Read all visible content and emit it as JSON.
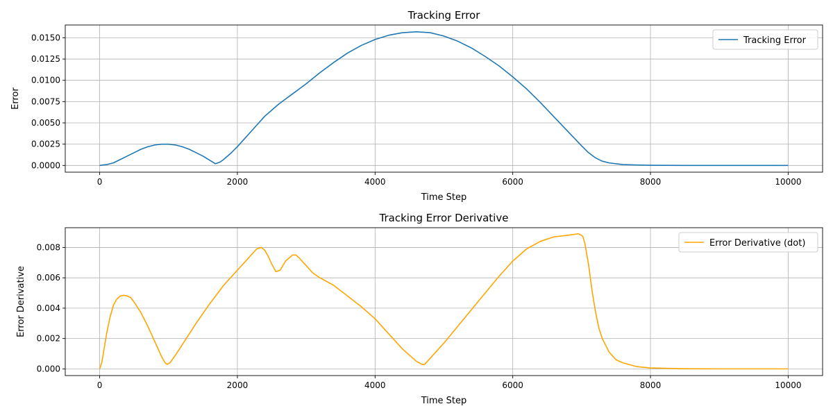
{
  "chart_data": [
    {
      "type": "line",
      "title": "Tracking Error",
      "xlabel": "Time Step",
      "ylabel": "Error",
      "xlim": [
        -500,
        10500
      ],
      "ylim": [
        -0.00079,
        0.0165
      ],
      "x_ticks": [
        0,
        2000,
        4000,
        6000,
        8000,
        10000
      ],
      "x_tick_labels": [
        "0",
        "2000",
        "4000",
        "6000",
        "8000",
        "10000"
      ],
      "y_ticks": [
        0,
        0.0025,
        0.005,
        0.0075,
        0.01,
        0.0125,
        0.015
      ],
      "y_tick_labels": [
        "0.0000",
        "0.0025",
        "0.0050",
        "0.0075",
        "0.0100",
        "0.0125",
        "0.0150"
      ],
      "grid": true,
      "legend_position": "top-right",
      "series": [
        {
          "name": "Tracking Error",
          "color": "#1f77b4",
          "x": [
            0,
            100,
            200,
            300,
            400,
            500,
            600,
            700,
            800,
            900,
            1000,
            1100,
            1200,
            1300,
            1400,
            1500,
            1600,
            1680,
            1750,
            1800,
            1900,
            2000,
            2100,
            2200,
            2300,
            2400,
            2500,
            2600,
            2700,
            2800,
            2900,
            3000,
            3200,
            3400,
            3600,
            3800,
            4000,
            4200,
            4400,
            4600,
            4800,
            5000,
            5200,
            5400,
            5600,
            5800,
            6000,
            6200,
            6400,
            6600,
            6800,
            7000,
            7100,
            7200,
            7300,
            7400,
            7500,
            7600,
            7800,
            8000,
            8500,
            9000,
            10000
          ],
          "y": [
            0.0,
            0.0001,
            0.0003,
            0.0007,
            0.0011,
            0.0015,
            0.0019,
            0.0022,
            0.0024,
            0.0025,
            0.0025,
            0.0024,
            0.0022,
            0.0019,
            0.0015,
            0.0011,
            0.0006,
            0.0002,
            0.0004,
            0.0007,
            0.0014,
            0.0022,
            0.0031,
            0.004,
            0.0049,
            0.0058,
            0.0065,
            0.0072,
            0.0078,
            0.0084,
            0.009,
            0.0096,
            0.0109,
            0.0121,
            0.0132,
            0.0141,
            0.0148,
            0.0153,
            0.0156,
            0.0157,
            0.0156,
            0.0152,
            0.0146,
            0.0138,
            0.0128,
            0.0117,
            0.0104,
            0.009,
            0.0074,
            0.0057,
            0.004,
            0.0023,
            0.0015,
            0.0009,
            0.0005,
            0.0003,
            0.0002,
            0.0001,
            5e-05,
            2e-05,
            0.0,
            0.0,
            0.0
          ]
        }
      ]
    },
    {
      "type": "line",
      "title": "Tracking Error Derivative",
      "xlabel": "Time Step",
      "ylabel": "Error Derivative",
      "xlim": [
        -500,
        10500
      ],
      "ylim": [
        -0.00044,
        0.0093
      ],
      "x_ticks": [
        0,
        2000,
        4000,
        6000,
        8000,
        10000
      ],
      "x_tick_labels": [
        "0",
        "2000",
        "4000",
        "6000",
        "8000",
        "10000"
      ],
      "y_ticks": [
        0,
        0.002,
        0.004,
        0.006,
        0.008
      ],
      "y_tick_labels": [
        "0.000",
        "0.002",
        "0.004",
        "0.006",
        "0.008"
      ],
      "grid": true,
      "legend_position": "top-right",
      "series": [
        {
          "name": "Error Derivative (dot)",
          "color": "#ffa500",
          "x": [
            0,
            30,
            60,
            100,
            150,
            200,
            250,
            300,
            350,
            400,
            450,
            500,
            600,
            700,
            800,
            900,
            950,
            980,
            1020,
            1100,
            1200,
            1400,
            1600,
            1800,
            2000,
            2100,
            2200,
            2280,
            2350,
            2400,
            2450,
            2500,
            2560,
            2620,
            2700,
            2800,
            2850,
            2900,
            3000,
            3100,
            3200,
            3400,
            3600,
            3800,
            4000,
            4200,
            4400,
            4600,
            4680,
            4720,
            4800,
            5000,
            5200,
            5400,
            5600,
            5800,
            6000,
            6200,
            6400,
            6600,
            6800,
            6950,
            7000,
            7020,
            7050,
            7100,
            7150,
            7200,
            7250,
            7300,
            7400,
            7500,
            7600,
            7800,
            8000,
            8500,
            9000,
            10000
          ],
          "y": [
            0.0,
            0.0004,
            0.0012,
            0.0023,
            0.0034,
            0.0042,
            0.0046,
            0.0048,
            0.00485,
            0.0048,
            0.0047,
            0.0044,
            0.0037,
            0.0028,
            0.0018,
            0.0008,
            0.0004,
            0.0003,
            0.0004,
            0.0009,
            0.0016,
            0.003,
            0.0043,
            0.0055,
            0.0065,
            0.007,
            0.0075,
            0.0079,
            0.008,
            0.0078,
            0.0074,
            0.0069,
            0.0064,
            0.0065,
            0.0071,
            0.0075,
            0.0075,
            0.0073,
            0.0068,
            0.0063,
            0.006,
            0.0055,
            0.0048,
            0.0041,
            0.0033,
            0.0023,
            0.0013,
            0.0005,
            0.0003,
            0.0003,
            0.0007,
            0.0017,
            0.0028,
            0.0039,
            0.005,
            0.0061,
            0.0071,
            0.0079,
            0.0084,
            0.0087,
            0.0088,
            0.0089,
            0.0088,
            0.0087,
            0.0082,
            0.0069,
            0.0052,
            0.0038,
            0.0027,
            0.002,
            0.0011,
            0.0006,
            0.0004,
            0.00015,
            6e-05,
            1e-05,
            0.0,
            0.0
          ]
        }
      ]
    }
  ]
}
